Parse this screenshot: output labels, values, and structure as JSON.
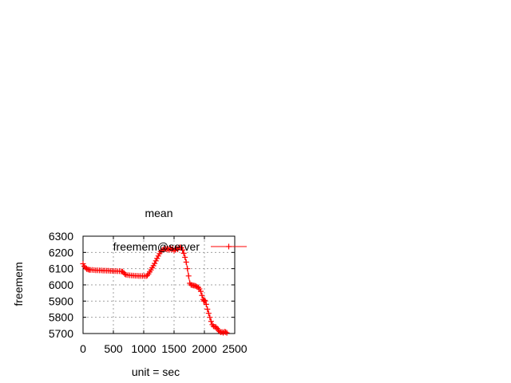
{
  "chart_data": {
    "type": "line",
    "title": "mean",
    "xlabel": "unit = sec",
    "ylabel": "freemem",
    "xlim": [
      0,
      2500
    ],
    "ylim": [
      5700,
      6300
    ],
    "x_ticks": [
      0,
      500,
      1000,
      1500,
      2000,
      2500
    ],
    "y_ticks": [
      5700,
      5800,
      5900,
      6000,
      6100,
      6200,
      6300
    ],
    "grid": true,
    "legend_position": "top-right",
    "series": [
      {
        "name": "freemem@server",
        "color": "#ff0000",
        "marker": "plus",
        "points": [
          [
            0,
            6130
          ],
          [
            20,
            6115
          ],
          [
            40,
            6105
          ],
          [
            60,
            6098
          ],
          [
            80,
            6095
          ],
          [
            100,
            6093
          ],
          [
            120,
            6092
          ],
          [
            150,
            6092
          ],
          [
            180,
            6091
          ],
          [
            210,
            6090
          ],
          [
            240,
            6090
          ],
          [
            270,
            6089
          ],
          [
            300,
            6089
          ],
          [
            330,
            6088
          ],
          [
            360,
            6088
          ],
          [
            390,
            6087
          ],
          [
            420,
            6087
          ],
          [
            450,
            6086
          ],
          [
            480,
            6086
          ],
          [
            510,
            6085
          ],
          [
            540,
            6085
          ],
          [
            570,
            6084
          ],
          [
            600,
            6084
          ],
          [
            630,
            6083
          ],
          [
            650,
            6082
          ],
          [
            670,
            6075
          ],
          [
            690,
            6066
          ],
          [
            710,
            6062
          ],
          [
            740,
            6060
          ],
          [
            770,
            6059
          ],
          [
            800,
            6058
          ],
          [
            830,
            6057
          ],
          [
            860,
            6056
          ],
          [
            890,
            6056
          ],
          [
            920,
            6055
          ],
          [
            950,
            6055
          ],
          [
            980,
            6055
          ],
          [
            1010,
            6054
          ],
          [
            1040,
            6054
          ],
          [
            1060,
            6058
          ],
          [
            1080,
            6068
          ],
          [
            1100,
            6080
          ],
          [
            1120,
            6092
          ],
          [
            1140,
            6105
          ],
          [
            1160,
            6118
          ],
          [
            1180,
            6132
          ],
          [
            1200,
            6148
          ],
          [
            1220,
            6163
          ],
          [
            1240,
            6178
          ],
          [
            1260,
            6192
          ],
          [
            1280,
            6205
          ],
          [
            1300,
            6213
          ],
          [
            1320,
            6218
          ],
          [
            1340,
            6220
          ],
          [
            1360,
            6222
          ],
          [
            1380,
            6218
          ],
          [
            1400,
            6223
          ],
          [
            1420,
            6215
          ],
          [
            1440,
            6225
          ],
          [
            1460,
            6218
          ],
          [
            1480,
            6222
          ],
          [
            1500,
            6210
          ],
          [
            1520,
            6218
          ],
          [
            1540,
            6225
          ],
          [
            1560,
            6218
          ],
          [
            1580,
            6230
          ],
          [
            1600,
            6232
          ],
          [
            1620,
            6228
          ],
          [
            1640,
            6215
          ],
          [
            1660,
            6195
          ],
          [
            1680,
            6170
          ],
          [
            1700,
            6140
          ],
          [
            1720,
            6100
          ],
          [
            1740,
            6055
          ],
          [
            1760,
            6010
          ],
          [
            1780,
            6000
          ],
          [
            1800,
            5998
          ],
          [
            1820,
            5996
          ],
          [
            1840,
            5995
          ],
          [
            1860,
            5992
          ],
          [
            1880,
            5988
          ],
          [
            1900,
            5984
          ],
          [
            1920,
            5975
          ],
          [
            1940,
            5960
          ],
          [
            1960,
            5935
          ],
          [
            1980,
            5910
          ],
          [
            1990,
            5900
          ],
          [
            2000,
            5905
          ],
          [
            2010,
            5902
          ],
          [
            2030,
            5880
          ],
          [
            2050,
            5850
          ],
          [
            2070,
            5825
          ],
          [
            2090,
            5800
          ],
          [
            2110,
            5775
          ],
          [
            2130,
            5755
          ],
          [
            2150,
            5745
          ],
          [
            2170,
            5742
          ],
          [
            2190,
            5740
          ],
          [
            2210,
            5732
          ],
          [
            2230,
            5720
          ],
          [
            2250,
            5712
          ],
          [
            2270,
            5708
          ],
          [
            2290,
            5710
          ],
          [
            2310,
            5705
          ],
          [
            2330,
            5711
          ],
          [
            2350,
            5709
          ],
          [
            2370,
            5704
          ]
        ]
      }
    ]
  }
}
